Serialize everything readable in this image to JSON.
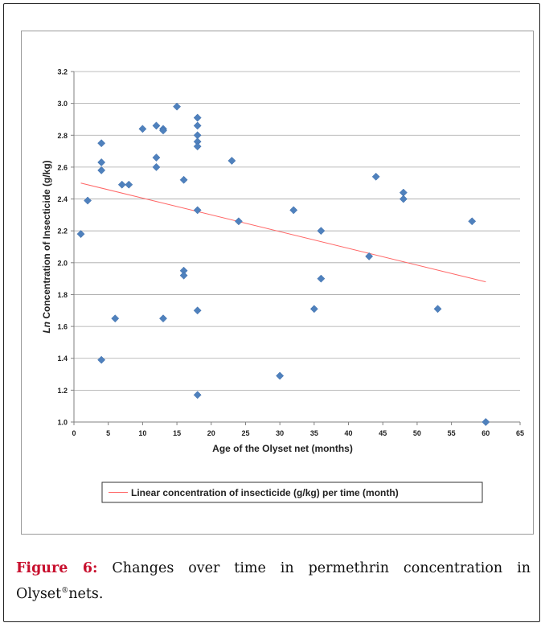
{
  "chart_data": {
    "type": "scatter",
    "xlabel": "Age of the Olyset net  (months)",
    "ylabel_italic": "Ln",
    "ylabel_rest": " Concentration of Insecticide (g/kg)",
    "xlim": [
      0,
      65
    ],
    "ylim": [
      1.0,
      3.2
    ],
    "xticks": [
      "0",
      "5",
      "10",
      "15",
      "20",
      "25",
      "30",
      "35",
      "40",
      "45",
      "50",
      "55",
      "60",
      "65"
    ],
    "yticks": [
      "1.0",
      "1.2",
      "1.4",
      "1.6",
      "1.8",
      "2.0",
      "2.2",
      "2.4",
      "2.6",
      "2.8",
      "3.0",
      "3.2"
    ],
    "grid": "horizontal",
    "point_color": "#4f81bd",
    "trend_color": "#ff6666",
    "points": [
      {
        "x": 1,
        "y": 2.18
      },
      {
        "x": 2,
        "y": 2.39
      },
      {
        "x": 4,
        "y": 2.75
      },
      {
        "x": 4,
        "y": 2.63
      },
      {
        "x": 4,
        "y": 2.58
      },
      {
        "x": 4,
        "y": 1.39
      },
      {
        "x": 6,
        "y": 1.65
      },
      {
        "x": 7,
        "y": 2.49
      },
      {
        "x": 8,
        "y": 2.49
      },
      {
        "x": 10,
        "y": 2.84
      },
      {
        "x": 12,
        "y": 2.86
      },
      {
        "x": 12,
        "y": 2.66
      },
      {
        "x": 12,
        "y": 2.6
      },
      {
        "x": 13,
        "y": 2.84
      },
      {
        "x": 13,
        "y": 2.83
      },
      {
        "x": 13,
        "y": 1.65
      },
      {
        "x": 15,
        "y": 2.98
      },
      {
        "x": 16,
        "y": 2.52
      },
      {
        "x": 16,
        "y": 1.95
      },
      {
        "x": 16,
        "y": 1.92
      },
      {
        "x": 18,
        "y": 2.91
      },
      {
        "x": 18,
        "y": 2.86
      },
      {
        "x": 18,
        "y": 2.8
      },
      {
        "x": 18,
        "y": 2.76
      },
      {
        "x": 18,
        "y": 2.73
      },
      {
        "x": 18,
        "y": 2.33
      },
      {
        "x": 18,
        "y": 1.7
      },
      {
        "x": 18,
        "y": 1.17
      },
      {
        "x": 23,
        "y": 2.64
      },
      {
        "x": 24,
        "y": 2.26
      },
      {
        "x": 30,
        "y": 1.29
      },
      {
        "x": 32,
        "y": 2.33
      },
      {
        "x": 35,
        "y": 1.71
      },
      {
        "x": 36,
        "y": 2.2
      },
      {
        "x": 36,
        "y": 1.9
      },
      {
        "x": 43,
        "y": 2.04
      },
      {
        "x": 44,
        "y": 2.54
      },
      {
        "x": 48,
        "y": 2.44
      },
      {
        "x": 48,
        "y": 2.4
      },
      {
        "x": 53,
        "y": 1.71
      },
      {
        "x": 58,
        "y": 2.26
      },
      {
        "x": 60,
        "y": 1.0
      }
    ],
    "trendline": {
      "x": [
        1,
        60
      ],
      "y": [
        2.5,
        1.88
      ]
    },
    "legend": {
      "label": "Linear concentration of insecticide (g/kg) per time (month)",
      "placement": "bottom"
    }
  },
  "caption": {
    "label": "Figure 6:",
    "text_before_sup": " Changes over time in permethrin concentration in Olyset",
    "sup": "®",
    "text_after_sup": "nets."
  }
}
